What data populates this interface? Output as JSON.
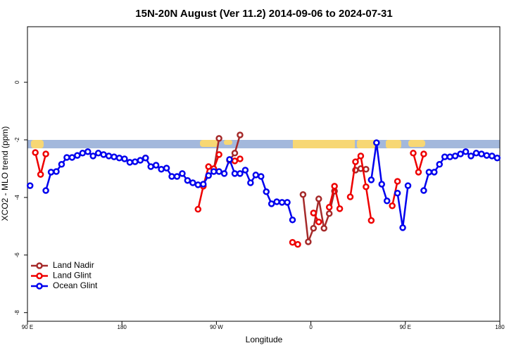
{
  "chart_data": {
    "type": "line",
    "title": "15N-20N August (Ver 11.2)   2014-09-06 to 2024-07-31",
    "x_label": "Longitude",
    "y_label": "XCO2 - MLO trend (ppm)",
    "xlim": [
      90,
      540
    ],
    "xticks": [
      {
        "value": 90,
        "label": "90 E"
      },
      180,
      {
        "value": 270,
        "label": "90 W"
      },
      {
        "value": 360,
        "label": "0"
      },
      {
        "value": 450,
        "label": "90 E"
      },
      {
        "value": 540,
        "label": "180"
      }
    ],
    "ylim": [
      -8.3,
      1.93
    ],
    "yticks": [
      0,
      -2,
      -4,
      -6,
      -8
    ],
    "legend": "lower left",
    "series": [
      {
        "name": "Land Nadir",
        "color": "#a52a2a",
        "x": [
          267.5,
          272.5,
          277.5,
          282.5,
          287.5,
          292.5,
          297.5,
          352.5,
          357.5,
          362.5,
          367.5,
          372.5,
          377.5,
          382.5,
          387.5,
          402.5,
          407.5,
          412.5
        ],
        "values": [
          -3.05,
          -1.95,
          null,
          -2.71,
          -2.46,
          -1.83,
          null,
          -3.9,
          -5.54,
          -5.07,
          -4.05,
          -5.07,
          -4.56,
          -3.78,
          null,
          -3.05,
          -3.0,
          -3.02
        ]
      },
      {
        "name": "Land Glint",
        "color": "#ee0000",
        "x": [
          97.5,
          102.5,
          107.5,
          112.5,
          202.5,
          207.5,
          252.5,
          257.5,
          262.5,
          267.5,
          272.5,
          277.5,
          287.5,
          292.5,
          297.5,
          342.5,
          347.5,
          352.5,
          362.5,
          367.5,
          372.5,
          377.5,
          382.5,
          387.5,
          392.5,
          397.5,
          402.5,
          407.5,
          412.5,
          417.5,
          422.5,
          437.5,
          442.5,
          447.5,
          457.5,
          462.5,
          467.5
        ],
        "values": [
          -2.44,
          -3.2,
          -2.49,
          null,
          -2.63,
          null,
          -4.41,
          -3.61,
          -2.93,
          -3.0,
          -2.51,
          null,
          -2.73,
          -2.66,
          null,
          -5.56,
          -5.63,
          null,
          -4.54,
          -4.85,
          null,
          -4.34,
          -3.61,
          -4.39,
          null,
          -3.98,
          -2.76,
          -2.56,
          -3.63,
          -4.8,
          null,
          -4.29,
          -3.44,
          null,
          -2.46,
          -3.12,
          -2.49
        ]
      },
      {
        "name": "Ocean Glint",
        "color": "#0000ee",
        "x": [
          92.5,
          97.5,
          107.5,
          112.5,
          117.5,
          122.5,
          127.5,
          132.5,
          137.5,
          142.5,
          147.5,
          152.5,
          157.5,
          162.5,
          167.5,
          172.5,
          177.5,
          182.5,
          187.5,
          192.5,
          197.5,
          202.5,
          207.5,
          212.5,
          217.5,
          222.5,
          227.5,
          232.5,
          237.5,
          242.5,
          247.5,
          252.5,
          257.5,
          262.5,
          267.5,
          272.5,
          277.5,
          282.5,
          287.5,
          292.5,
          297.5,
          302.5,
          307.5,
          312.5,
          317.5,
          322.5,
          327.5,
          332.5,
          337.5,
          342.5,
          347.5,
          417.5,
          422.5,
          427.5,
          432.5,
          437.5,
          442.5,
          447.5,
          452.5,
          457.5,
          467.5,
          472.5,
          477.5,
          482.5,
          487.5,
          492.5,
          497.5,
          502.5,
          507.5,
          512.5,
          517.5,
          522.5,
          527.5,
          532.5,
          537.5
        ],
        "values": [
          -3.59,
          null,
          -3.76,
          -3.12,
          -3.1,
          -2.85,
          -2.61,
          -2.61,
          -2.54,
          -2.46,
          -2.41,
          -2.56,
          -2.46,
          -2.51,
          -2.56,
          -2.59,
          -2.63,
          -2.66,
          -2.78,
          -2.76,
          -2.71,
          -2.63,
          -2.93,
          -2.88,
          -3.02,
          -2.98,
          -3.27,
          -3.27,
          -3.17,
          -3.41,
          -3.49,
          -3.56,
          -3.54,
          -3.24,
          -3.1,
          -3.1,
          -3.17,
          -2.68,
          -3.17,
          -3.17,
          -3.05,
          -3.49,
          -3.22,
          -3.27,
          -3.8,
          -4.22,
          -4.15,
          -4.17,
          -4.17,
          -4.78,
          null,
          -3.39,
          -2.1,
          -3.54,
          -4.12,
          null,
          -3.85,
          -5.05,
          -3.59,
          null,
          -3.76,
          -3.12,
          -3.12,
          -2.85,
          -2.59,
          -2.59,
          -2.56,
          -2.49,
          -2.41,
          -2.56,
          -2.46,
          -2.49,
          -2.54,
          -2.56,
          -2.63
        ]
      }
    ]
  }
}
